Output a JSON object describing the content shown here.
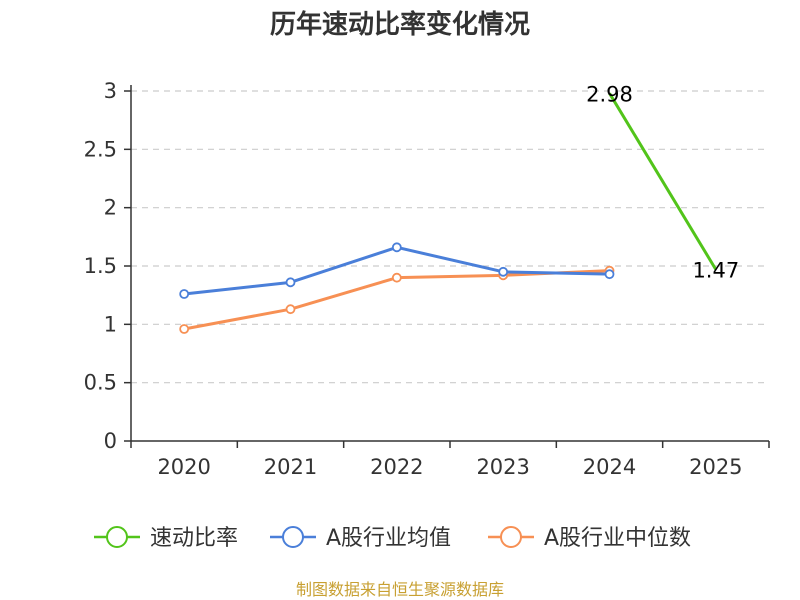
{
  "chart_data": {
    "type": "line",
    "title": "历年速动比率变化情况",
    "categories": [
      "2020",
      "2021",
      "2022",
      "2023",
      "2024",
      "2025"
    ],
    "ylim": [
      0,
      3
    ],
    "yticks": [
      "0",
      "0.5",
      "1",
      "1.5",
      "2",
      "2.5",
      "3"
    ],
    "grid": true,
    "legend_position": "bottom",
    "series": [
      {
        "name": "速动比率",
        "color": "#52c41a",
        "values": [
          null,
          null,
          null,
          null,
          2.98,
          1.47
        ],
        "data_labels": [
          null,
          null,
          null,
          null,
          "2.98",
          "1.47"
        ]
      },
      {
        "name": "A股行业均值",
        "color": "#4a7fd9",
        "values": [
          1.26,
          1.36,
          1.66,
          1.45,
          1.43,
          null
        ]
      },
      {
        "name": "A股行业中位数",
        "color": "#f79054",
        "values": [
          0.96,
          1.13,
          1.4,
          1.42,
          1.46,
          null
        ]
      }
    ],
    "source_note": "制图数据来自恒生聚源数据库"
  }
}
